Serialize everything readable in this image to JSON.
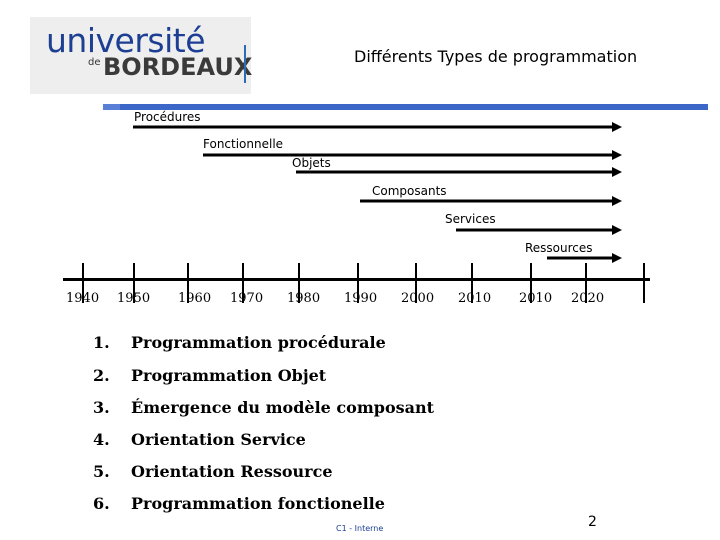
{
  "logo": {
    "top": "université",
    "de": "de",
    "bottom": "BORDEAUX"
  },
  "title": "Différents Types de programmation",
  "timeline": {
    "bars": [
      {
        "label": "Procédures"
      },
      {
        "label": "Fonctionnelle"
      },
      {
        "label": "Objets"
      },
      {
        "label": "Composants"
      },
      {
        "label": "Services"
      },
      {
        "label": "Ressources"
      }
    ],
    "years": [
      "1940",
      "1950",
      "1960",
      "1970",
      "1980",
      "1990",
      "2000",
      "2010",
      "2010",
      "2020"
    ]
  },
  "list": [
    {
      "num": "1.",
      "text": "Programmation procédurale"
    },
    {
      "num": "2.",
      "text": "Programmation Objet"
    },
    {
      "num": "3.",
      "text": "Émergence du modèle composant"
    },
    {
      "num": "4.",
      "text": "Orientation Service"
    },
    {
      "num": "5.",
      "text": "Orientation Ressource"
    },
    {
      "num": "6.",
      "text": "Programmation fonctionelle"
    }
  ],
  "footer": "C1 - Interne",
  "page_number": "2",
  "colors": {
    "brand_blue": "#1c3f94",
    "rule_blue": "#3c66c8"
  }
}
